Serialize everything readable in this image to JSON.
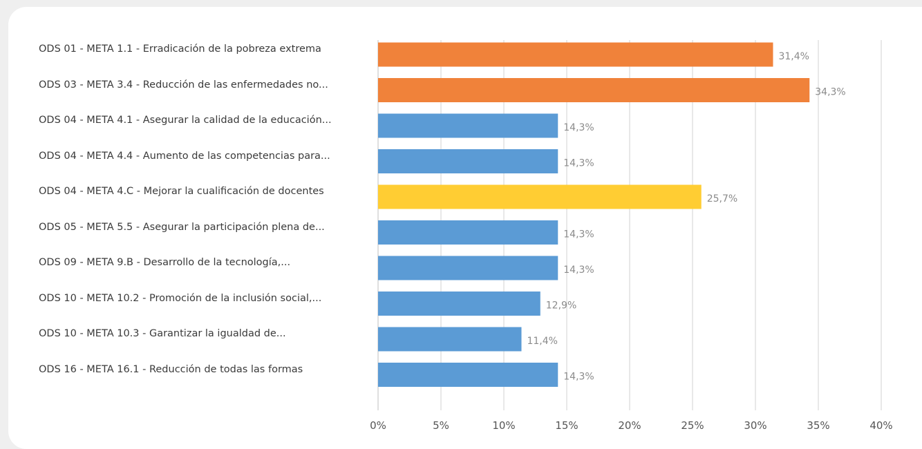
{
  "chart_data": {
    "type": "bar",
    "orientation": "horizontal",
    "categories": [
      "ODS 01 - META 1.1 - Erradicación de la pobreza extrema",
      "ODS 03 - META 3.4 - Reducción de las enfermedades no...",
      "ODS 04 - META 4.1 - Asegurar la calidad de la educación...",
      "ODS 04 - META 4.4 - Aumento de las competencias para...",
      "ODS 04 - META 4.C - Mejorar la cualificación de docentes",
      "ODS 05 - META 5.5 - Asegurar la participación plena de...",
      "ODS 09 - META 9.B - Desarrollo de la tecnología,...",
      "ODS 10 - META 10.2 - Promoción de la inclusión social,...",
      "ODS 10 - META 10.3 - Garantizar la igualdad de...",
      "ODS 16 - META 16.1 - Reducción de todas las formas"
    ],
    "values": [
      31.4,
      34.3,
      14.3,
      14.3,
      25.7,
      14.3,
      14.3,
      12.9,
      11.4,
      14.3
    ],
    "value_labels": [
      "31,4%",
      "34,3%",
      "14,3%",
      "14,3%",
      "25,7%",
      "14,3%",
      "14,3%",
      "12,9%",
      "11,4%",
      "14,3%"
    ],
    "bar_colors": [
      "#f0823a",
      "#f0823a",
      "#5b9bd5",
      "#5b9bd5",
      "#ffcd33",
      "#5b9bd5",
      "#5b9bd5",
      "#5b9bd5",
      "#5b9bd5",
      "#5b9bd5"
    ],
    "xlim": [
      0,
      40
    ],
    "x_ticks": [
      0,
      5,
      10,
      15,
      20,
      25,
      30,
      35,
      40
    ],
    "x_tick_labels": [
      "0%",
      "5%",
      "10%",
      "15%",
      "20%",
      "25%",
      "30%",
      "35%",
      "40%"
    ],
    "grid": true,
    "legend": "none",
    "title": "",
    "xlabel": "",
    "ylabel": ""
  }
}
